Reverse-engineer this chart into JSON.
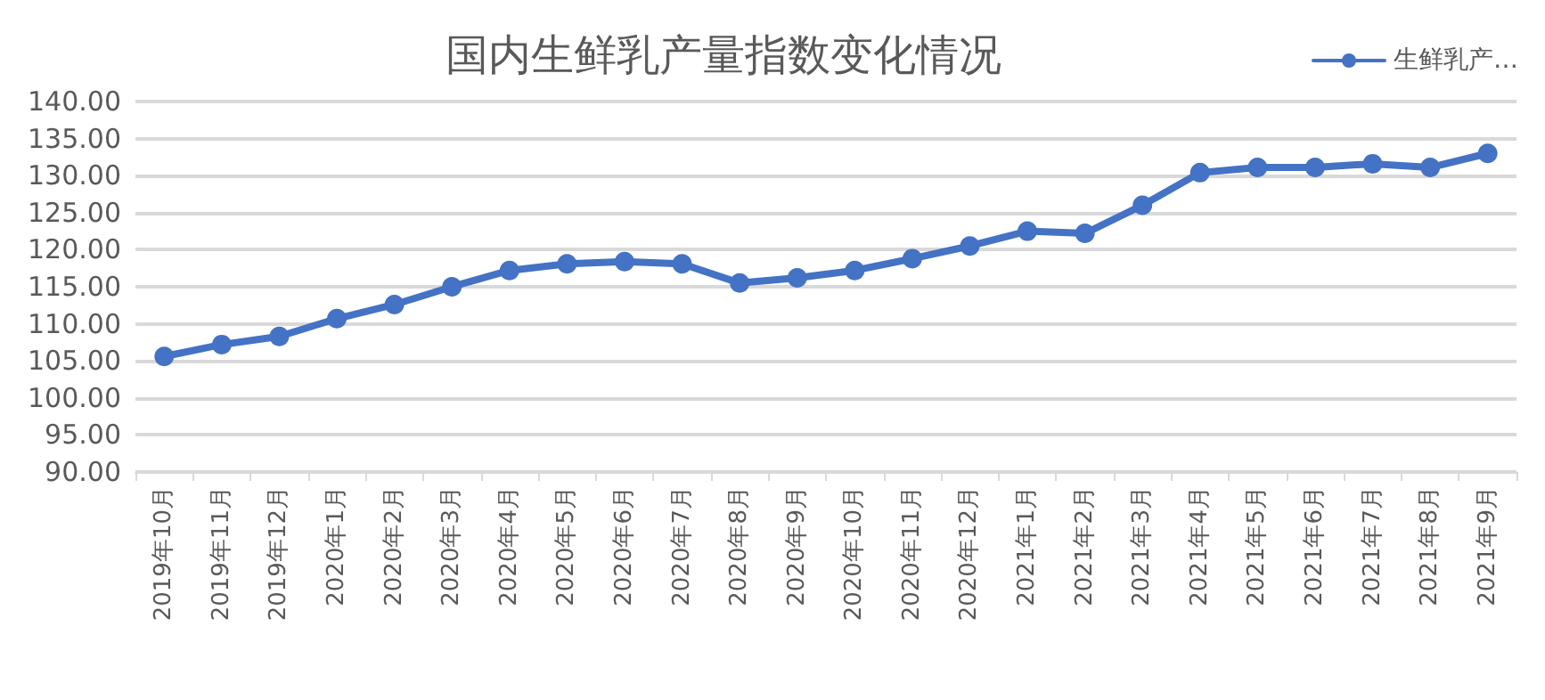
{
  "chart_data": {
    "type": "line",
    "title": "国内生鲜乳产量指数变化情况",
    "categories": [
      "2019年10月",
      "2019年11月",
      "2019年12月",
      "2020年1月",
      "2020年2月",
      "2020年3月",
      "2020年4月",
      "2020年5月",
      "2020年6月",
      "2020年7月",
      "2020年8月",
      "2020年9月",
      "2020年10月",
      "2020年11月",
      "2020年12月",
      "2021年1月",
      "2021年2月",
      "2021年3月",
      "2021年4月",
      "2021年5月",
      "2021年6月",
      "2021年7月",
      "2021年8月",
      "2021年9月"
    ],
    "series": [
      {
        "name": "生鲜乳产…",
        "color": "#4472c4",
        "values": [
          105.6,
          107.2,
          108.3,
          110.7,
          112.6,
          115.0,
          117.2,
          118.1,
          118.4,
          118.1,
          115.5,
          116.2,
          117.2,
          118.8,
          120.5,
          122.5,
          122.2,
          126.0,
          130.4,
          131.1,
          131.1,
          131.6,
          131.1,
          133.0
        ]
      }
    ],
    "ylim": [
      90,
      140
    ],
    "yticks": [
      {
        "value": 90,
        "label": "90.00"
      },
      {
        "value": 95,
        "label": "95.00"
      },
      {
        "value": 100,
        "label": "100.00"
      },
      {
        "value": 105,
        "label": "105.00"
      },
      {
        "value": 110,
        "label": "110.00"
      },
      {
        "value": 115,
        "label": "115.00"
      },
      {
        "value": 120,
        "label": "120.00"
      },
      {
        "value": 125,
        "label": "125.00"
      },
      {
        "value": 130,
        "label": "130.00"
      },
      {
        "value": 135,
        "label": "135.00"
      },
      {
        "value": 140,
        "label": "140.00"
      }
    ],
    "grid": "y",
    "legend": "top right",
    "marker": "circle",
    "line_style": "solid"
  }
}
